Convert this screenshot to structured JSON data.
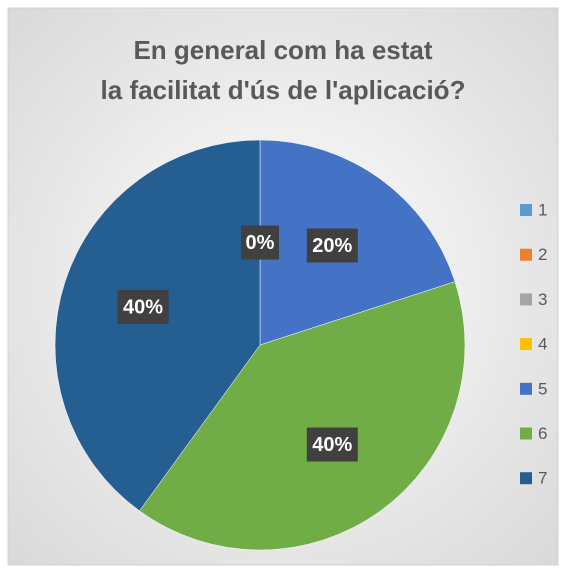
{
  "chart_data": {
    "type": "pie",
    "title": "En general com ha estat la facilitat d'ús de l'aplicació?",
    "categories": [
      "1",
      "2",
      "3",
      "4",
      "5",
      "6",
      "7"
    ],
    "values": [
      0,
      0,
      0,
      0,
      20,
      40,
      40
    ],
    "value_labels": [
      "0%",
      "0%",
      "0%",
      "0%",
      "20%",
      "40%",
      "40%"
    ],
    "colors": [
      "#5b9bd5",
      "#ed7d31",
      "#a5a5a5",
      "#ffc000",
      "#4472c4",
      "#70ad47",
      "#255e91"
    ],
    "legend": "right"
  }
}
